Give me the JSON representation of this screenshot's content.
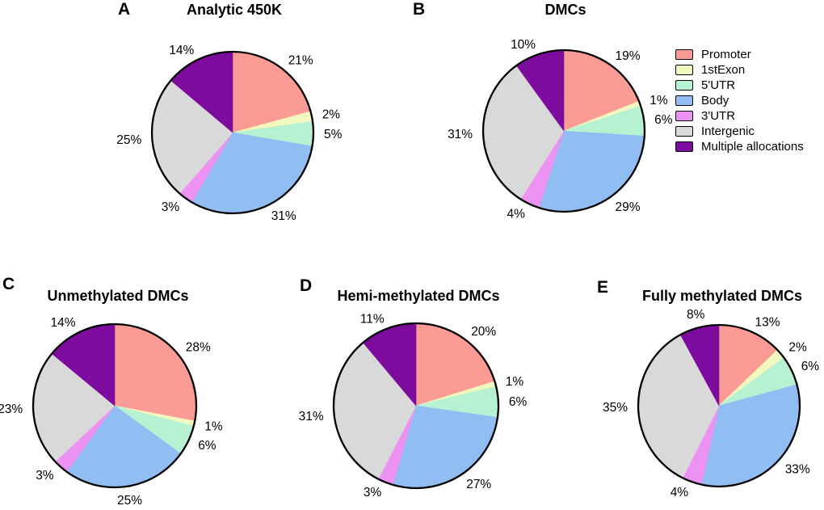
{
  "figure": {
    "description": "Distribution of CpG sites across genomic features, five pie charts",
    "categories": [
      "Promoter",
      "1stExon",
      "5'UTR",
      "Body",
      "3'UTR",
      "Intergenic",
      "Multiple allocations"
    ]
  },
  "legend": {
    "position": "top-right",
    "entries": [
      {
        "label": "Promoter",
        "color": "#FA9B95"
      },
      {
        "label": "1stExon",
        "color": "#F2F7BD"
      },
      {
        "label": "5'UTR",
        "color": "#B6F2D2"
      },
      {
        "label": "Body",
        "color": "#90BDF2"
      },
      {
        "label": "3'UTR",
        "color": "#EB92F2"
      },
      {
        "label": "Intergenic",
        "color": "#D9D9D9"
      },
      {
        "label": "Multiple allocations",
        "color": "#7D0C9E"
      }
    ]
  },
  "chart_data": [
    {
      "type": "pie",
      "panel": "A",
      "title": "Analytic 450K",
      "categories": [
        "Promoter",
        "1stExon",
        "5'UTR",
        "Body",
        "3'UTR",
        "Intergenic",
        "Multiple allocations"
      ],
      "values": [
        21,
        2,
        5,
        31,
        3,
        25,
        14
      ],
      "unit": "%",
      "start_angle": "12-oclock",
      "direction": "clockwise",
      "labels": "outside"
    },
    {
      "type": "pie",
      "panel": "B",
      "title": "DMCs",
      "categories": [
        "Promoter",
        "1stExon",
        "5'UTR",
        "Body",
        "3'UTR",
        "Intergenic",
        "Multiple allocations"
      ],
      "values": [
        19,
        1,
        6,
        29,
        4,
        31,
        10
      ],
      "unit": "%",
      "start_angle": "12-oclock",
      "direction": "clockwise",
      "labels": "outside"
    },
    {
      "type": "pie",
      "panel": "C",
      "title": "Unmethylated DMCs",
      "categories": [
        "Promoter",
        "1stExon",
        "5'UTR",
        "Body",
        "3'UTR",
        "Intergenic",
        "Multiple allocations"
      ],
      "values": [
        28,
        1,
        6,
        25,
        3,
        23,
        14
      ],
      "unit": "%",
      "start_angle": "12-oclock",
      "direction": "clockwise",
      "labels": "outside"
    },
    {
      "type": "pie",
      "panel": "D",
      "title": "Hemi-methylated DMCs",
      "categories": [
        "Promoter",
        "1stExon",
        "5'UTR",
        "Body",
        "3'UTR",
        "Intergenic",
        "Multiple allocations"
      ],
      "values": [
        20,
        1,
        6,
        27,
        3,
        31,
        11
      ],
      "unit": "%",
      "start_angle": "12-oclock",
      "direction": "clockwise",
      "labels": "outside"
    },
    {
      "type": "pie",
      "panel": "E",
      "title": "Fully methylated DMCs",
      "categories": [
        "Promoter",
        "1stExon",
        "5'UTR",
        "Body",
        "3'UTR",
        "Intergenic",
        "Multiple allocations"
      ],
      "values": [
        13,
        2,
        6,
        33,
        4,
        35,
        8
      ],
      "unit": "%",
      "start_angle": "12-oclock",
      "direction": "clockwise",
      "labels": "outside"
    }
  ]
}
